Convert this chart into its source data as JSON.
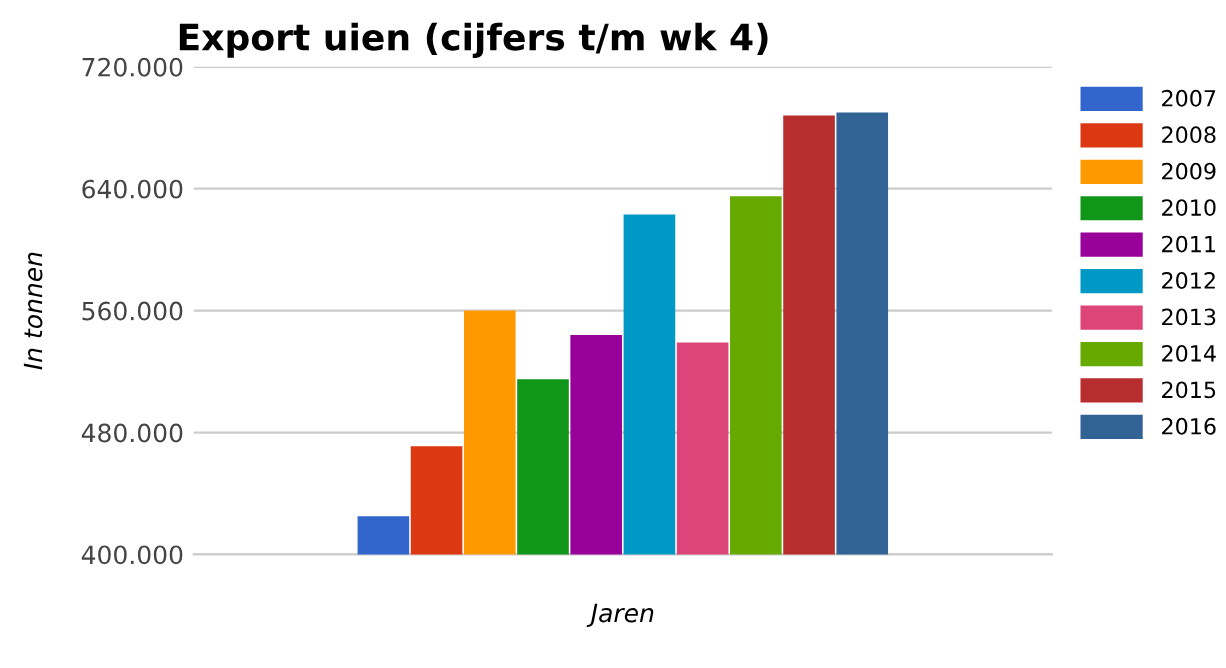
{
  "chart_data": {
    "type": "bar",
    "title": "Export uien (cijfers t/m wk 4)",
    "xlabel": "Jaren",
    "ylabel": "In tonnen",
    "categories": [
      null
    ],
    "series": [
      {
        "name": "2007",
        "color": "#3366cc",
        "values": [
          425000
        ]
      },
      {
        "name": "2008",
        "color": "#dc3912",
        "values": [
          471000
        ]
      },
      {
        "name": "2009",
        "color": "#ff9900",
        "values": [
          560000
        ]
      },
      {
        "name": "2010",
        "color": "#109618",
        "values": [
          515000
        ]
      },
      {
        "name": "2011",
        "color": "#990099",
        "values": [
          544000
        ]
      },
      {
        "name": "2012",
        "color": "#0099c6",
        "values": [
          623000
        ]
      },
      {
        "name": "2013",
        "color": "#dd4477",
        "values": [
          539000
        ]
      },
      {
        "name": "2014",
        "color": "#66aa00",
        "values": [
          635000
        ]
      },
      {
        "name": "2015",
        "color": "#b82e2e",
        "values": [
          688000
        ]
      },
      {
        "name": "2016",
        "color": "#316395",
        "values": [
          690000
        ]
      }
    ],
    "ylim": [
      400000,
      720000
    ],
    "yticks": [
      {
        "value": 400000,
        "label": "400.000"
      },
      {
        "value": 480000,
        "label": "480.000"
      },
      {
        "value": 560000,
        "label": "560.000"
      },
      {
        "value": 640000,
        "label": "640.000"
      },
      {
        "value": 720000,
        "label": "720.000"
      }
    ],
    "grid": "y",
    "legend": "right"
  }
}
